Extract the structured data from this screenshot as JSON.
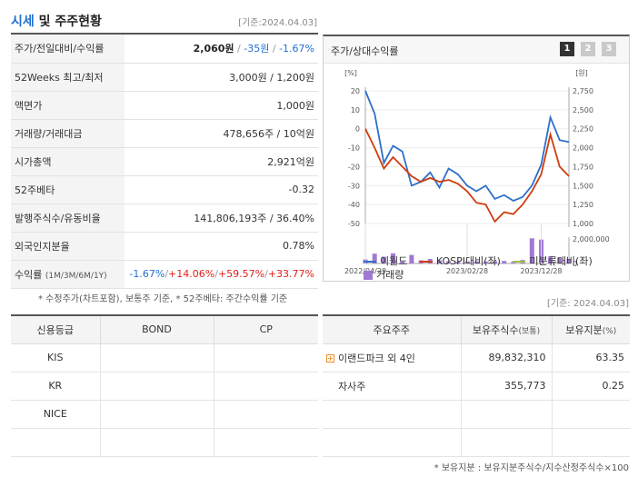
{
  "header": {
    "title_a": "시세",
    "title_b": " 및 주주현황",
    "date": "[기준:2024.04.03]"
  },
  "info": {
    "rows": [
      {
        "label": "주가/전일대비/수익률"
      },
      {
        "label": "52Weeks 최고/최저",
        "value": "3,000원 / 1,200원"
      },
      {
        "label": "액면가",
        "value": "1,000원"
      },
      {
        "label": "거래량/거래대금",
        "value": "478,656주 / 10억원"
      },
      {
        "label": "시가총액",
        "value": "2,921억원"
      },
      {
        "label": "52주베타",
        "value": "-0.32"
      },
      {
        "label": "발행주식수/유동비율",
        "value": "141,806,193주 / 36.40%"
      },
      {
        "label": "외국인지분율",
        "value": "0.78%"
      },
      {
        "label": "수익률",
        "label_small": "(1M/3M/6M/1Y)"
      }
    ],
    "price": "2,060원",
    "change": "-35원",
    "change_pct": "-1.67%",
    "returns": [
      "-1.67%",
      "+14.06%",
      "+59.57%",
      "+33.77%"
    ],
    "sep": "/",
    "note": "* 수정주가(차트포함), 보통주 기준, * 52주베타: 주간수익률 기준"
  },
  "chart": {
    "title": "주가/상대수익률",
    "tabs": [
      "1",
      "2",
      "3"
    ],
    "date": "[기준: 2024.04.03]",
    "legend": [
      "이월드",
      "KOSPI대비(좌)",
      "미분류대비(좌)",
      "거래량"
    ]
  },
  "chart_data": {
    "type": "line",
    "x_ticks": [
      "2022/04/29",
      "2023/02/28",
      "2023/12/28"
    ],
    "y_left": {
      "unit": "[%]",
      "ticks": [
        20,
        10,
        0,
        -10,
        -20,
        -30,
        -40,
        -50
      ],
      "range": [
        -50,
        20
      ]
    },
    "y_right": {
      "unit": "[원]",
      "ticks": [
        "2,750",
        "2,500",
        "2,250",
        "2,000",
        "1,750",
        "1,500",
        "1,250",
        "1,000"
      ],
      "range": [
        1000,
        2750
      ]
    },
    "volume_axis": {
      "ticks": [
        "2,000,000",
        "0"
      ],
      "max": 2000000
    },
    "series": [
      {
        "name": "이월드",
        "color": "#2d6fc9",
        "values": [
          20,
          8,
          -18,
          -9,
          -12,
          -30,
          -28,
          -23,
          -31,
          -21,
          -24,
          -30,
          -33,
          -30,
          -37,
          -35,
          -38,
          -36,
          -30,
          -19,
          6,
          -6,
          -7
        ]
      },
      {
        "name": "KOSPI대비(좌)",
        "color": "#cf3c0f",
        "values": [
          0,
          -10,
          -21,
          -15,
          -20,
          -25,
          -28,
          -26,
          -28,
          -27,
          -29,
          -33,
          -39,
          -40,
          -49,
          -44,
          -45,
          -40,
          -33,
          -24,
          -3,
          -20,
          -25
        ]
      },
      {
        "name": "미분류대비(좌)",
        "color": "#9ac43a",
        "values": []
      }
    ],
    "volume": {
      "name": "거래량",
      "color": "#a179d3",
      "values": [
        330000,
        800000,
        550000,
        830000,
        160000,
        700000,
        260000,
        370000,
        260000,
        190000,
        130000,
        180000,
        180000,
        160000,
        180000,
        210000,
        150000,
        290000,
        2050000,
        1950000,
        560000,
        480000,
        370000
      ]
    }
  },
  "credit": {
    "headers": [
      "신용등급",
      "BOND",
      "CP"
    ],
    "rows": [
      [
        "KIS",
        "",
        ""
      ],
      [
        "KR",
        "",
        ""
      ],
      [
        "NICE",
        "",
        ""
      ],
      [
        "",
        "",
        ""
      ]
    ]
  },
  "holders": {
    "headers": [
      "주요주주",
      "보유주식수",
      "(보통)",
      "보유지분",
      "(%)"
    ],
    "rows": [
      {
        "name": "이랜드파크 외 4인",
        "shares": "89,832,310",
        "pct": "63.35"
      },
      {
        "name": "자사주",
        "shares": "355,773",
        "pct": "0.25"
      },
      {
        "name": "",
        "shares": "",
        "pct": ""
      },
      {
        "name": "",
        "shares": "",
        "pct": ""
      }
    ],
    "note": "* 보유지분 : 보유지분주식수/지수산정주식수×100"
  },
  "colors": {
    "accent": "#1f6fd1",
    "negative": "#1f6fd1",
    "positive": "#e4201a"
  }
}
